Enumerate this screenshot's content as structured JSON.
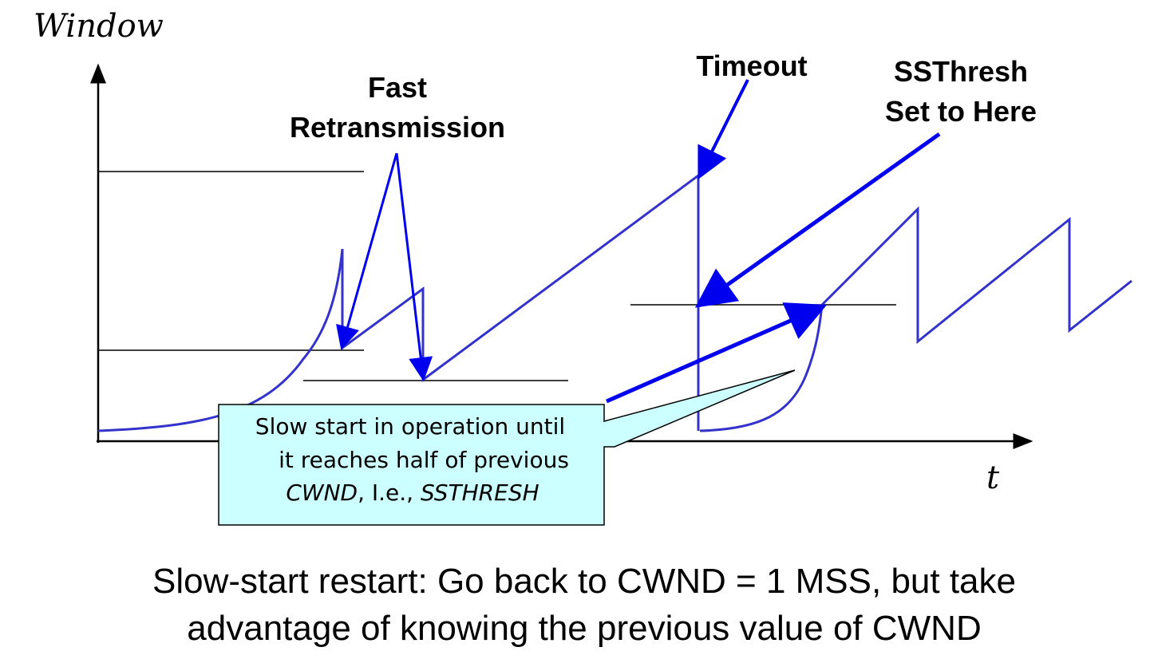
{
  "axes": {
    "y_label": "Window",
    "x_label": "t"
  },
  "annotations": {
    "fast_retransmission": [
      "Fast",
      "Retransmission"
    ],
    "timeout": "Timeout",
    "ssthresh": [
      "SSThresh",
      "Set to Here"
    ]
  },
  "callout": {
    "line1": "Slow start in operation until",
    "line2": "it reaches half of previous",
    "line3_italic_a": "CWND",
    "line3_mid": ", I.e., ",
    "line3_italic_b": "SSTHRESH"
  },
  "caption": {
    "line1": "Slow-start restart: Go back to CWND = 1 MSS, but take",
    "line2": "advantage of knowing the previous value of CWND"
  },
  "colors": {
    "curve": "#3333cc",
    "arrow": "#0000ee",
    "callout_fill": "#ccffff",
    "black": "#000000"
  }
}
